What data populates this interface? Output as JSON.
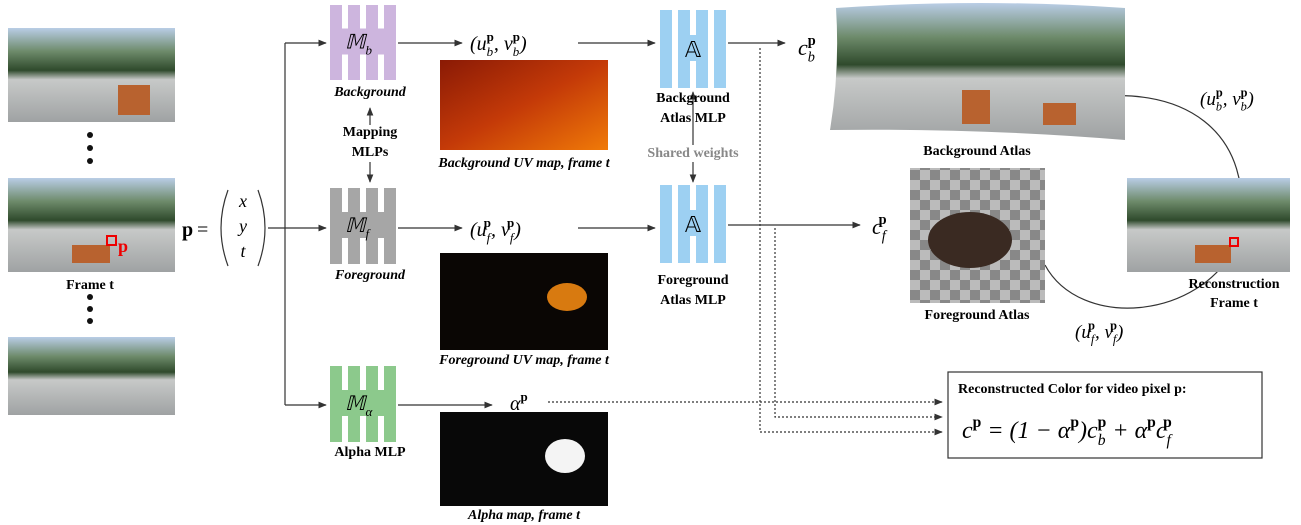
{
  "frames": {
    "caption": "Frame t",
    "pixel": "p"
  },
  "input": {
    "lhs": "p",
    "eq": "=",
    "vector": [
      "x",
      "y",
      "t"
    ]
  },
  "mapping": {
    "caption": [
      "Mapping",
      "MLPs"
    ]
  },
  "mlps": [
    {
      "symbol": [
        {
          "t": "𝕄"
        },
        {
          "sub": "b"
        }
      ],
      "caption": "Background"
    },
    {
      "symbol": [
        {
          "t": "𝕄"
        },
        {
          "sub": "f"
        }
      ],
      "caption": "Foreground"
    },
    {
      "symbol": [
        {
          "t": "𝕄"
        },
        {
          "sub": "α"
        }
      ],
      "caption": "Alpha MLP"
    }
  ],
  "outputs": {
    "uv_b": [
      {
        "t": "("
      },
      {
        "t": "u"
      },
      {
        "sub": "b",
        "sup": "p"
      },
      {
        "t": ", "
      },
      {
        "t": "v"
      },
      {
        "sub": "b",
        "sup": "p"
      },
      {
        "t": ")"
      }
    ],
    "uv_f": [
      {
        "t": "("
      },
      {
        "t": "u"
      },
      {
        "sub": "f",
        "sup": "p"
      },
      {
        "t": ", "
      },
      {
        "t": "v"
      },
      {
        "sub": "f",
        "sup": "p"
      },
      {
        "t": ")"
      }
    ],
    "alpha": [
      {
        "t": "α"
      },
      {
        "sup": "p"
      }
    ]
  },
  "maps": {
    "background": "Background UV map, frame t",
    "foreground": "Foreground UV map, frame t",
    "alpha": "Alpha map, frame t"
  },
  "atlas_mlps": {
    "symbol": "𝔸",
    "background": [
      "Background",
      "Atlas MLP"
    ],
    "foreground": [
      "Foreground",
      "Atlas MLP"
    ],
    "shared": "Shared weights"
  },
  "colors": {
    "c_b": [
      {
        "t": "c"
      },
      {
        "sub": "b",
        "sup": "p"
      }
    ],
    "c_f": [
      {
        "t": "c"
      },
      {
        "sub": "f",
        "sup": "p"
      }
    ]
  },
  "atlases": {
    "background": "Background Atlas",
    "foreground": "Foreground Atlas"
  },
  "reconstruction": {
    "caption": [
      "Reconstruction",
      "Frame t"
    ],
    "uv_b": [
      {
        "t": "("
      },
      {
        "t": "u"
      },
      {
        "sub": "b",
        "sup": "p"
      },
      {
        "t": ", "
      },
      {
        "t": "v"
      },
      {
        "sub": "b",
        "sup": "p"
      },
      {
        "t": ")"
      }
    ],
    "uv_f": [
      {
        "t": "("
      },
      {
        "t": "u"
      },
      {
        "sub": "f",
        "sup": "p"
      },
      {
        "t": ", "
      },
      {
        "t": "v"
      },
      {
        "sub": "f",
        "sup": "p"
      },
      {
        "t": ")"
      }
    ]
  },
  "formula": {
    "title": "Reconstructed Color for video pixel p:",
    "expr": [
      {
        "t": "c"
      },
      {
        "sup": "p"
      },
      {
        "t": " = (1 − "
      },
      {
        "t": "α"
      },
      {
        "sup": "p"
      },
      {
        "t": ")"
      },
      {
        "t": "c"
      },
      {
        "sub": "b",
        "sup": "p"
      },
      {
        "t": " + "
      },
      {
        "t": "α"
      },
      {
        "sup": "p"
      },
      {
        "t": "c"
      },
      {
        "sub": "f",
        "sup": "p"
      }
    ]
  }
}
